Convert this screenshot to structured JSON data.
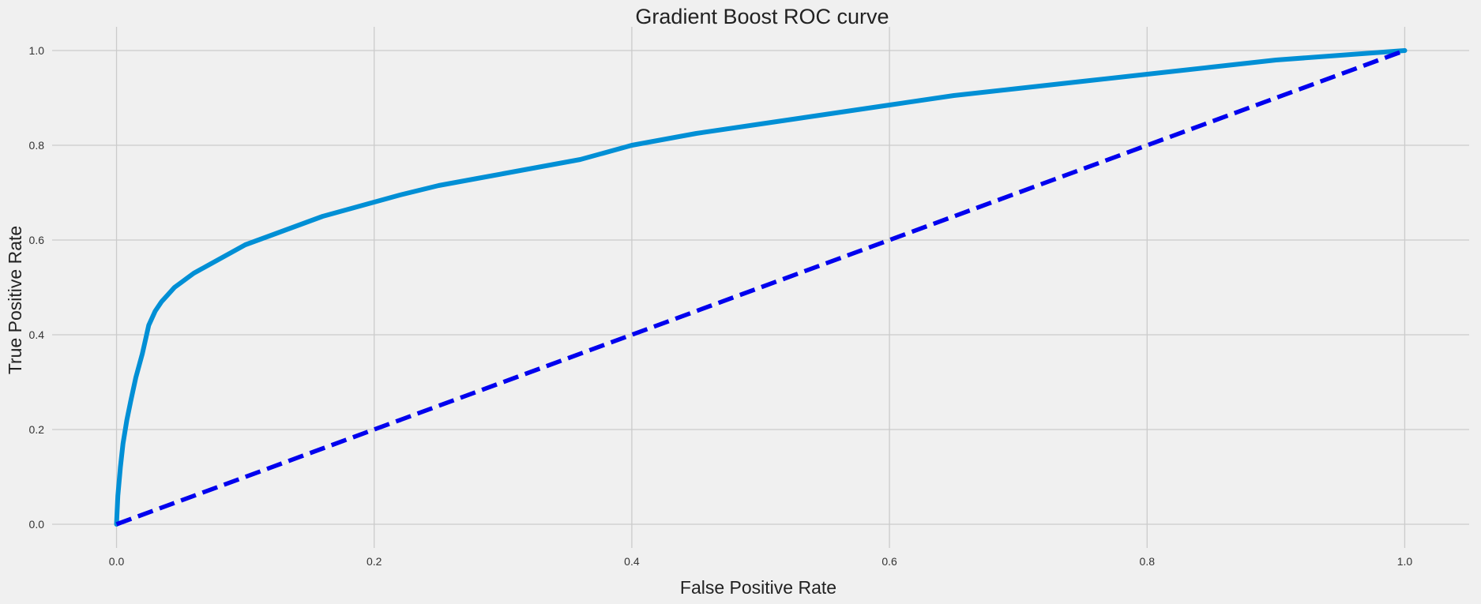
{
  "chart_data": {
    "type": "line",
    "title": "Gradient Boost ROC curve",
    "xlabel": "False Positive Rate",
    "ylabel": "True Positive Rate",
    "xlim": [
      -0.05,
      1.05
    ],
    "ylim": [
      -0.05,
      1.05
    ],
    "grid": true,
    "xticks": [
      0.0,
      0.2,
      0.4,
      0.6,
      0.8,
      1.0
    ],
    "xtick_labels": [
      "0.0",
      "0.2",
      "0.4",
      "0.6",
      "0.8",
      "1.0"
    ],
    "yticks": [
      0.0,
      0.2,
      0.4,
      0.6,
      0.8,
      1.0
    ],
    "ytick_labels": [
      "0.0",
      "0.2",
      "0.4",
      "0.6",
      "0.8",
      "1.0"
    ],
    "series": [
      {
        "style": "solid",
        "color": "#008fd5",
        "x": [
          0.0,
          0.001,
          0.003,
          0.005,
          0.008,
          0.011,
          0.015,
          0.02,
          0.025,
          0.03,
          0.035,
          0.04,
          0.045,
          0.05,
          0.055,
          0.06,
          0.07,
          0.08,
          0.09,
          0.1,
          0.12,
          0.14,
          0.16,
          0.18,
          0.2,
          0.22,
          0.25,
          0.28,
          0.3,
          0.33,
          0.36,
          0.4,
          0.45,
          0.5,
          0.55,
          0.6,
          0.65,
          0.7,
          0.75,
          0.8,
          0.85,
          0.9,
          0.95,
          1.0
        ],
        "y": [
          0.0,
          0.06,
          0.12,
          0.17,
          0.22,
          0.26,
          0.31,
          0.36,
          0.42,
          0.45,
          0.47,
          0.485,
          0.5,
          0.51,
          0.52,
          0.53,
          0.545,
          0.56,
          0.575,
          0.59,
          0.61,
          0.63,
          0.65,
          0.665,
          0.68,
          0.695,
          0.715,
          0.73,
          0.74,
          0.755,
          0.77,
          0.8,
          0.825,
          0.845,
          0.865,
          0.885,
          0.905,
          0.92,
          0.935,
          0.95,
          0.965,
          0.98,
          0.99,
          1.0
        ]
      },
      {
        "style": "dashed",
        "color": "#0000ee",
        "x": [
          0.0,
          1.0
        ],
        "y": [
          0.0,
          1.0
        ]
      }
    ]
  }
}
